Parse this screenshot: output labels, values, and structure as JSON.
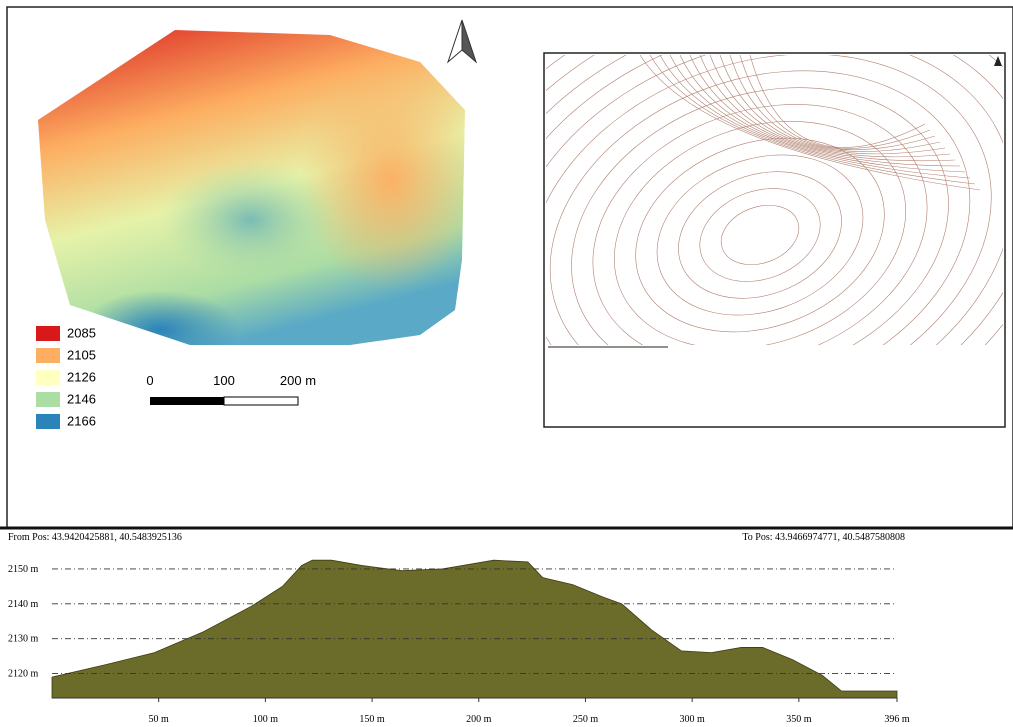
{
  "map": {
    "legend": [
      {
        "label": "2085",
        "color": "#d7191c"
      },
      {
        "label": "2105",
        "color": "#fdae61"
      },
      {
        "label": "2126",
        "color": "#ffffbf"
      },
      {
        "label": "2146",
        "color": "#abdda4"
      },
      {
        "label": "2166",
        "color": "#2b83ba"
      }
    ],
    "scale_labels": [
      "0",
      "100",
      "200 m"
    ]
  },
  "chart_data": {
    "type": "area",
    "from_label": "From Pos: 43.9420425881, 40.5483925136",
    "to_label": "To Pos: 43.9466974771, 40.5487580808",
    "x": [
      0,
      24,
      48,
      71,
      94,
      108,
      117,
      122,
      131,
      145,
      164,
      183,
      207,
      223,
      230,
      244,
      258,
      267,
      281,
      295,
      309,
      323,
      333,
      347,
      361,
      370,
      384,
      396
    ],
    "series": [
      {
        "color": "#6b6b2a",
        "values": [
          2119,
          2122.4,
          2126,
          2132,
          2139.5,
          2145,
          2151,
          2152.5,
          2152.5,
          2151,
          2149.5,
          2150,
          2152.5,
          2152,
          2147.5,
          2145.5,
          2142,
          2140,
          2132.5,
          2126.5,
          2126,
          2127.5,
          2127.5,
          2124,
          2119.5,
          2115,
          2115,
          2115
        ]
      }
    ],
    "xlim": [
      0,
      396
    ],
    "ylim": [
      2113,
      2156
    ],
    "xticks": [
      {
        "value": 50,
        "label": "50 m"
      },
      {
        "value": 100,
        "label": "100 m"
      },
      {
        "value": 150,
        "label": "150 m"
      },
      {
        "value": 200,
        "label": "200 m"
      },
      {
        "value": 250,
        "label": "250 m"
      },
      {
        "value": 300,
        "label": "300 m"
      },
      {
        "value": 350,
        "label": "350 m"
      },
      {
        "value": 396,
        "label": "396 m"
      }
    ],
    "yticks": [
      {
        "value": 2150,
        "label": "2150 m"
      },
      {
        "value": 2140,
        "label": "2140 m"
      },
      {
        "value": 2130,
        "label": "2130 m"
      },
      {
        "value": 2120,
        "label": "2120 m"
      }
    ],
    "grid": true
  }
}
